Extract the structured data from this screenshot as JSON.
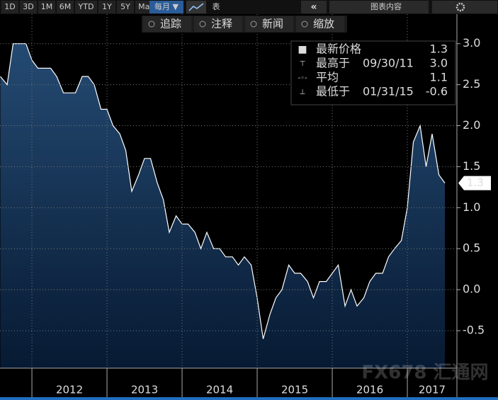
{
  "toolbar": {
    "ranges": [
      "1D",
      "3D",
      "1M",
      "6M",
      "YTD",
      "1Y",
      "5Y",
      "Max"
    ],
    "frequency": "每月 ▼",
    "table": "表",
    "content": "图表内容",
    "tools": [
      "追踪",
      "注释",
      "新闻",
      "缩放"
    ]
  },
  "watermark": "FX678 汇通网",
  "chart_data": {
    "type": "area",
    "color": "#ffffff",
    "grid": true,
    "stats": [
      {
        "label": "最新价格",
        "date": "",
        "value": "1.3"
      },
      {
        "label": "最高于",
        "date": "09/30/11",
        "value": "3.0"
      },
      {
        "label": "平均",
        "date": "",
        "value": "1.1"
      },
      {
        "label": "最低于",
        "date": "01/31/15",
        "value": "-0.6"
      }
    ],
    "last_label": "1.3",
    "x": [
      2011.58,
      2011.67,
      2011.75,
      2011.83,
      2011.92,
      2012.0,
      2012.08,
      2012.17,
      2012.25,
      2012.33,
      2012.42,
      2012.5,
      2012.58,
      2012.67,
      2012.75,
      2012.83,
      2012.92,
      2013.0,
      2013.08,
      2013.17,
      2013.25,
      2013.33,
      2013.42,
      2013.5,
      2013.58,
      2013.67,
      2013.75,
      2013.83,
      2013.92,
      2014.0,
      2014.08,
      2014.17,
      2014.25,
      2014.33,
      2014.42,
      2014.5,
      2014.58,
      2014.67,
      2014.75,
      2014.83,
      2014.92,
      2015.0,
      2015.08,
      2015.17,
      2015.25,
      2015.33,
      2015.42,
      2015.5,
      2015.58,
      2015.67,
      2015.75,
      2015.83,
      2015.92,
      2016.0,
      2016.08,
      2016.17,
      2016.25,
      2016.33,
      2016.42,
      2016.5,
      2016.58,
      2016.67,
      2016.75,
      2016.83,
      2016.92,
      2017.0,
      2017.08,
      2017.17,
      2017.25,
      2017.33,
      2017.42,
      2017.5
    ],
    "values": [
      2.6,
      2.5,
      3.0,
      3.0,
      3.0,
      2.8,
      2.7,
      2.7,
      2.7,
      2.6,
      2.4,
      2.4,
      2.4,
      2.6,
      2.6,
      2.5,
      2.2,
      2.2,
      2.0,
      1.9,
      1.7,
      1.2,
      1.4,
      1.6,
      1.6,
      1.3,
      1.1,
      0.7,
      0.9,
      0.8,
      0.8,
      0.7,
      0.5,
      0.7,
      0.5,
      0.5,
      0.4,
      0.4,
      0.3,
      0.4,
      0.3,
      -0.1,
      -0.6,
      -0.3,
      -0.1,
      0.0,
      0.3,
      0.2,
      0.2,
      0.1,
      -0.1,
      0.1,
      0.1,
      0.2,
      0.3,
      -0.2,
      0.0,
      -0.2,
      -0.1,
      0.1,
      0.2,
      0.2,
      0.4,
      0.5,
      0.6,
      1.0,
      1.8,
      2.0,
      1.5,
      1.9,
      1.4,
      1.3
    ],
    "xlim": [
      2011.575,
      2017.66
    ],
    "xticks": [
      {
        "value": 2012,
        "label": "2012"
      },
      {
        "value": 2013,
        "label": "2013"
      },
      {
        "value": 2014,
        "label": "2014"
      },
      {
        "value": 2015,
        "label": "2015"
      },
      {
        "value": 2016,
        "label": "2016"
      },
      {
        "value": 2017,
        "label": "2017"
      }
    ],
    "ylim": [
      -0.957,
      3.36
    ],
    "yticks": [
      -0.5,
      {
        "value": 0,
        "label": "0.0"
      },
      0.5,
      {
        "value": 1,
        "label": "1.0"
      },
      1.5,
      {
        "value": 2,
        "label": "2.0"
      },
      2.5,
      {
        "value": 3,
        "label": "3.0"
      }
    ]
  }
}
